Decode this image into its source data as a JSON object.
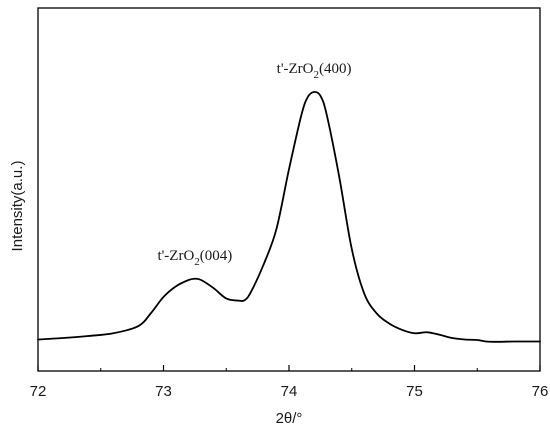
{
  "chart_data": {
    "type": "line",
    "title": "",
    "xlabel": "2θ/°",
    "ylabel": "Intensity(a.u.)",
    "xlim": [
      72,
      76
    ],
    "ylim": [
      0,
      1
    ],
    "xticks": [
      "72",
      "73",
      "74",
      "75",
      "76"
    ],
    "y_tick_labels_shown": false,
    "grid": false,
    "legend": "none",
    "line_color": "#000000",
    "series": [
      {
        "x": [
          72.0,
          72.2,
          72.4,
          72.6,
          72.8,
          72.9,
          73.0,
          73.1,
          73.2,
          73.25,
          73.3,
          73.4,
          73.5,
          73.6,
          73.65,
          73.7,
          73.8,
          73.9,
          74.0,
          74.1,
          74.15,
          74.2,
          74.25,
          74.3,
          74.4,
          74.5,
          74.6,
          74.7,
          74.8,
          74.9,
          75.0,
          75.1,
          75.2,
          75.3,
          75.4,
          75.5,
          75.6,
          75.8,
          76.0
        ],
        "values": [
          0.006,
          0.012,
          0.02,
          0.031,
          0.06,
          0.112,
          0.177,
          0.22,
          0.245,
          0.25,
          0.245,
          0.212,
          0.171,
          0.162,
          0.165,
          0.2,
          0.31,
          0.45,
          0.69,
          0.91,
          0.98,
          1.0,
          0.985,
          0.91,
          0.66,
          0.37,
          0.19,
          0.11,
          0.07,
          0.045,
          0.031,
          0.035,
          0.025,
          0.012,
          0.006,
          0.004,
          -0.003,
          -0.002,
          -0.002
        ]
      }
    ],
    "annotations": [
      {
        "main": "t'-ZrO",
        "sub": "2",
        "tail": "(400)",
        "x": 74.2,
        "y": 1.0
      },
      {
        "main": "t'-ZrO",
        "sub": "2",
        "tail": "(004)",
        "x": 73.25,
        "y": 0.25
      }
    ]
  }
}
